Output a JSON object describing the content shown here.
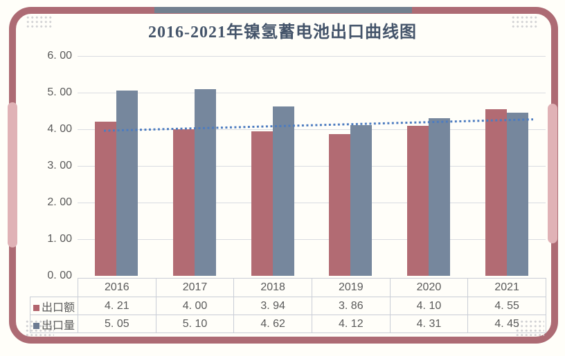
{
  "title": "2016-2021年镍氢蓄电池出口曲线图",
  "colors": {
    "frame_border": "#ad6b74",
    "frame_tab": "#e0b2b6",
    "top_accent_bar": "#73808f",
    "series_export_value": "#b26b73",
    "series_export_volume": "#76879d",
    "trendline": "#4d7cc0",
    "gridline": "#d9dce1",
    "axis_text": "#595959",
    "title_text": "#44546a"
  },
  "chart_data": {
    "type": "bar",
    "title": "2016-2021年镍氢蓄电池出口曲线图",
    "categories": [
      "2016",
      "2017",
      "2018",
      "2019",
      "2020",
      "2021"
    ],
    "series": [
      {
        "name": "出口额",
        "color": "#b26b73",
        "values": [
          4.21,
          4.0,
          3.94,
          3.86,
          4.1,
          4.55
        ]
      },
      {
        "name": "出口量",
        "color": "#76879d",
        "values": [
          5.05,
          5.1,
          4.62,
          4.12,
          4.31,
          4.45
        ]
      }
    ],
    "xlabel": "",
    "ylabel": "",
    "ylim": [
      0,
      6
    ],
    "y_tick_labels": [
      "6. 00",
      "5. 00",
      "4. 00",
      "3. 00",
      "2. 00",
      "1. 00",
      "0. 00"
    ],
    "grid": true,
    "legend_position": "data-table-left",
    "trendline": {
      "applies_to": "出口额",
      "style": "dotted",
      "color": "#4d7cc0",
      "start_value": 3.96,
      "end_value": 4.27
    }
  },
  "table": {
    "year_header": [
      "2016",
      "2017",
      "2018",
      "2019",
      "2020",
      "2021"
    ],
    "rows": [
      {
        "label": "出口额",
        "swatch_color": "#b2656d",
        "values": [
          "4. 21",
          "4. 00",
          "3. 94",
          "3. 86",
          "4. 10",
          "4. 55"
        ]
      },
      {
        "label": "出口量",
        "swatch_color": "#6d7c93",
        "values": [
          "5. 05",
          "5. 10",
          "4. 62",
          "4. 12",
          "4. 31",
          "4. 45"
        ]
      }
    ]
  }
}
